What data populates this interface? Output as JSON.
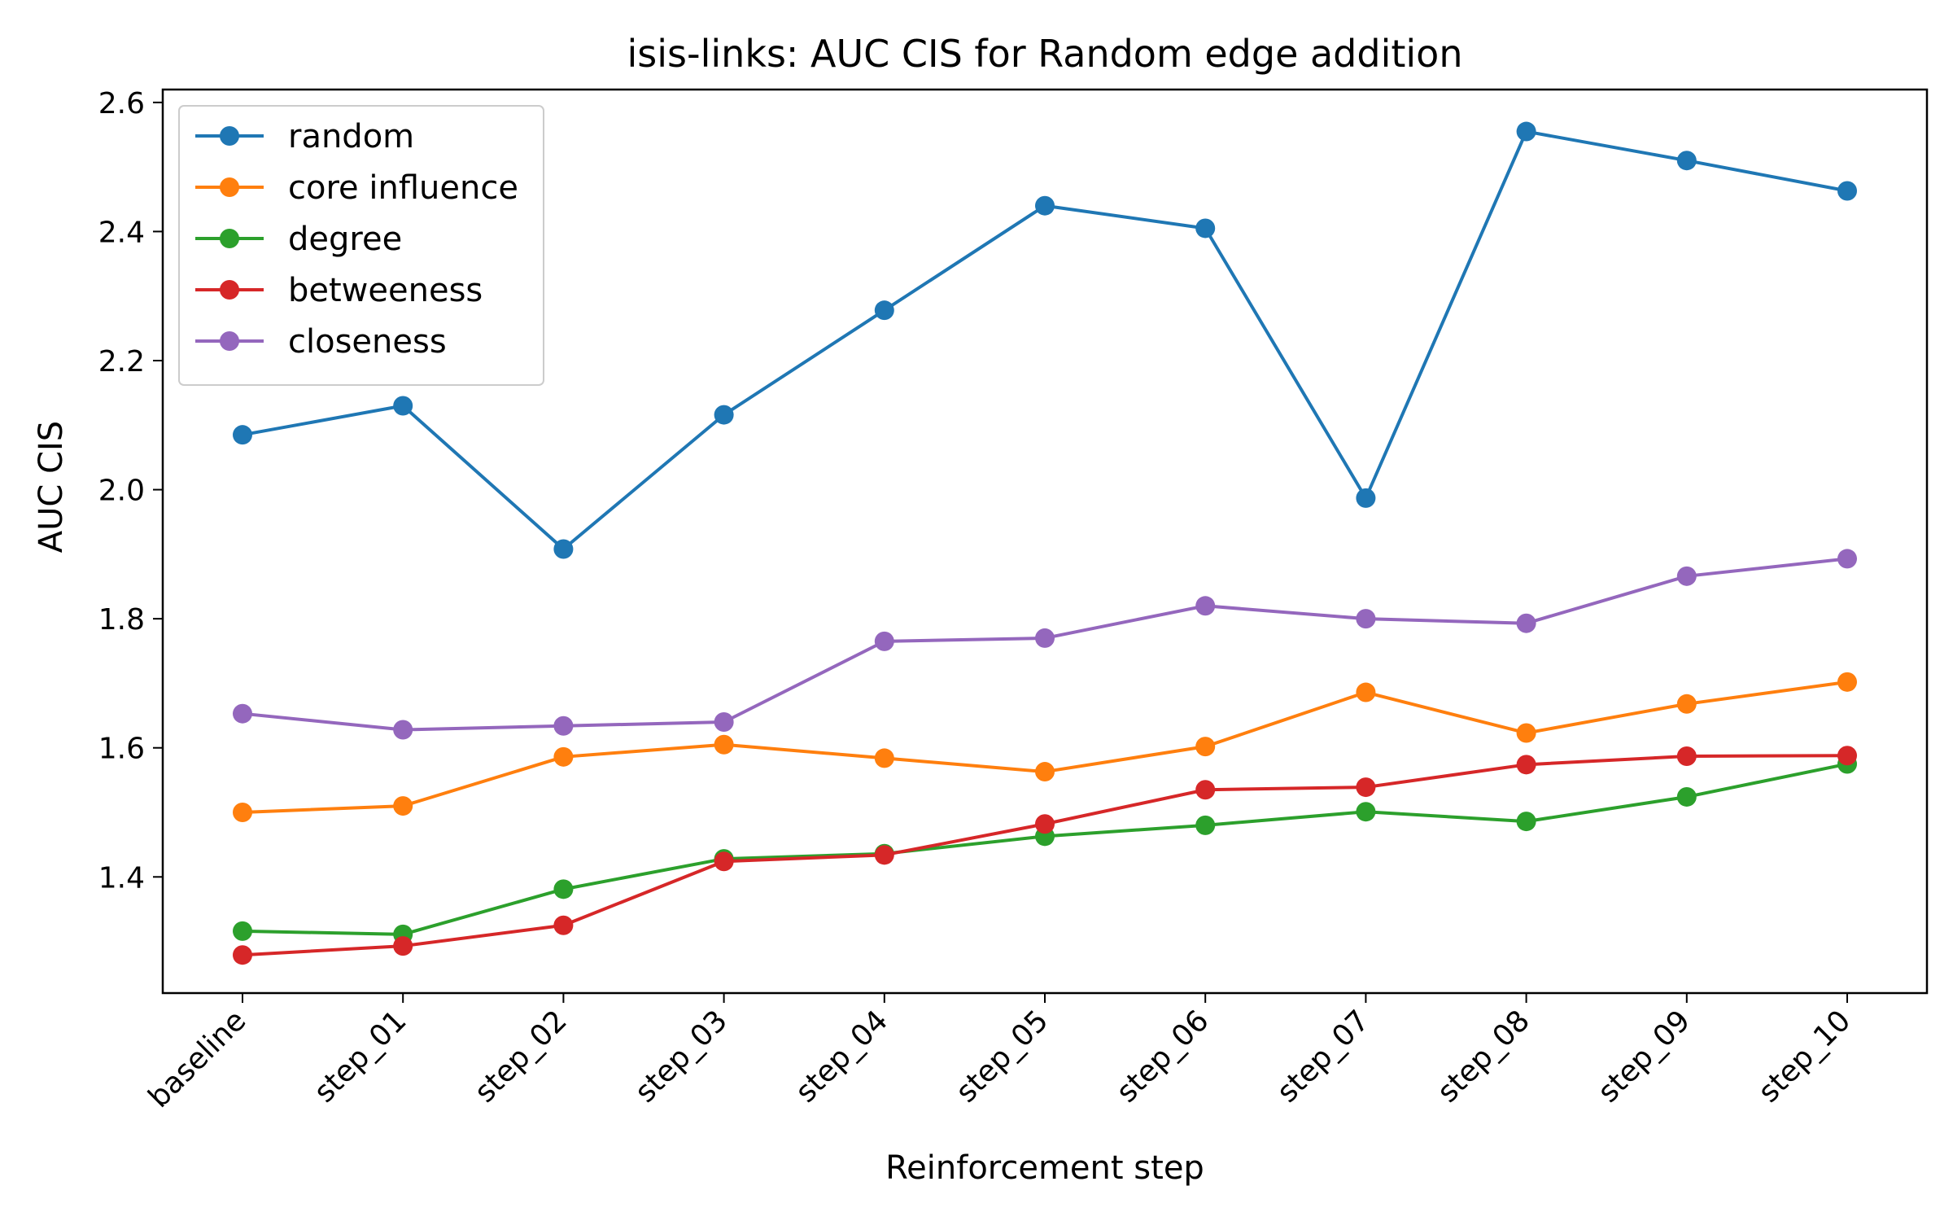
{
  "chart_data": {
    "type": "line",
    "title": "isis-links: AUC CIS for Random edge addition",
    "xlabel": "Reinforcement step",
    "ylabel": "AUC CIS",
    "categories": [
      "baseline",
      "step_01",
      "step_02",
      "step_03",
      "step_04",
      "step_05",
      "step_06",
      "step_07",
      "step_08",
      "step_09",
      "step_10"
    ],
    "yticks": [
      "1.4",
      "1.6",
      "1.8",
      "2.0",
      "2.2",
      "2.4",
      "2.6"
    ],
    "ylim": [
      1.22,
      2.62
    ],
    "grid": false,
    "legend_position": "top-left",
    "series": [
      {
        "name": "random",
        "color": "#1f77b4",
        "values": [
          2.085,
          2.13,
          1.908,
          2.116,
          2.278,
          2.44,
          2.405,
          1.987,
          2.555,
          2.51,
          2.463
        ]
      },
      {
        "name": "core influence",
        "color": "#ff7f0e",
        "values": [
          1.5,
          1.51,
          1.586,
          1.605,
          1.584,
          1.563,
          1.602,
          1.686,
          1.623,
          1.668,
          1.702
        ]
      },
      {
        "name": "degree",
        "color": "#2ca02c",
        "values": [
          1.316,
          1.311,
          1.381,
          1.428,
          1.436,
          1.463,
          1.48,
          1.501,
          1.486,
          1.524,
          1.575
        ]
      },
      {
        "name": "betweeness",
        "color": "#d62728",
        "values": [
          1.279,
          1.293,
          1.325,
          1.424,
          1.434,
          1.482,
          1.535,
          1.539,
          1.574,
          1.587,
          1.588
        ]
      },
      {
        "name": "closeness",
        "color": "#9467bd",
        "values": [
          1.653,
          1.628,
          1.634,
          1.64,
          1.765,
          1.77,
          1.82,
          1.8,
          1.793,
          1.866,
          1.893
        ]
      }
    ]
  }
}
